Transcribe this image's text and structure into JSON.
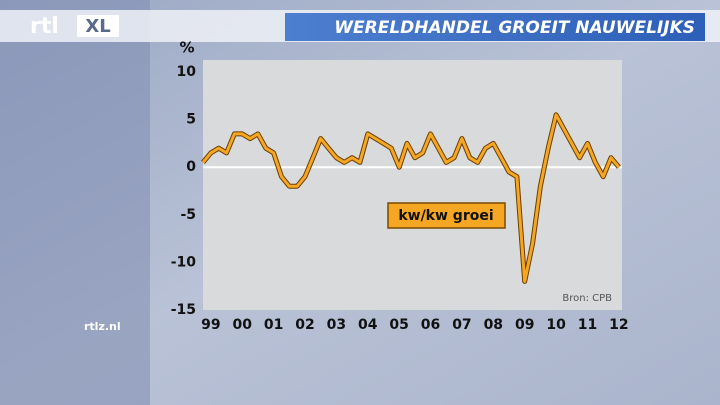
{
  "logo": {
    "left": "rtl",
    "right": "XL"
  },
  "site": "rtlz.nl",
  "chart_data": {
    "type": "line",
    "title": "WERELDHANDEL GROEIT NAUWELIJKS",
    "y_label": "%",
    "annotation": "kw/kw groei",
    "source": "Bron: CPB",
    "x": [
      1998.75,
      1999,
      1999.25,
      1999.5,
      1999.75,
      2000,
      2000.25,
      2000.5,
      2000.75,
      2001,
      2001.25,
      2001.5,
      2001.75,
      2002,
      2002.25,
      2002.5,
      2002.75,
      2003,
      2003.25,
      2003.5,
      2003.75,
      2004,
      2004.25,
      2004.5,
      2004.75,
      2005,
      2005.25,
      2005.5,
      2005.75,
      2006,
      2006.25,
      2006.5,
      2006.75,
      2007,
      2007.25,
      2007.5,
      2007.75,
      2008,
      2008.25,
      2008.5,
      2008.75,
      2009,
      2009.25,
      2009.5,
      2009.75,
      2010,
      2010.25,
      2010.5,
      2010.75,
      2011,
      2011.25,
      2011.5,
      2011.75,
      2012
    ],
    "series": [
      {
        "name": "kw/kw groei",
        "color": "#f5a623",
        "values": [
          0.5,
          1.5,
          2,
          1.5,
          3.5,
          3.5,
          3,
          3.5,
          2,
          1.5,
          -1,
          -2,
          -2,
          -1,
          1,
          3,
          2,
          1,
          0.5,
          1,
          0.5,
          3.5,
          3,
          2.5,
          2,
          0,
          2.5,
          1,
          1.5,
          3.5,
          2,
          0.5,
          1,
          3,
          1,
          0.5,
          2,
          2.5,
          1,
          -0.5,
          -1,
          -12,
          -8,
          -2,
          2,
          5.5,
          4,
          2.5,
          1,
          2.5,
          0.5,
          -1,
          1,
          0
        ]
      }
    ],
    "xlim": [
      1998.75,
      2012.1
    ],
    "xticks": [
      {
        "value": 1999,
        "label": "99"
      },
      {
        "value": 2000,
        "label": "00"
      },
      {
        "value": 2001,
        "label": "01"
      },
      {
        "value": 2002,
        "label": "02"
      },
      {
        "value": 2003,
        "label": "03"
      },
      {
        "value": 2004,
        "label": "04"
      },
      {
        "value": 2005,
        "label": "05"
      },
      {
        "value": 2006,
        "label": "06"
      },
      {
        "value": 2007,
        "label": "07"
      },
      {
        "value": 2008,
        "label": "08"
      },
      {
        "value": 2009,
        "label": "09"
      },
      {
        "value": 2010,
        "label": "10"
      },
      {
        "value": 2011,
        "label": "11"
      },
      {
        "value": 2012,
        "label": "12"
      }
    ],
    "ylim": [
      -15,
      10
    ],
    "yticks": [
      -15,
      -10,
      -5,
      0,
      5,
      10
    ],
    "zero_line": true
  }
}
